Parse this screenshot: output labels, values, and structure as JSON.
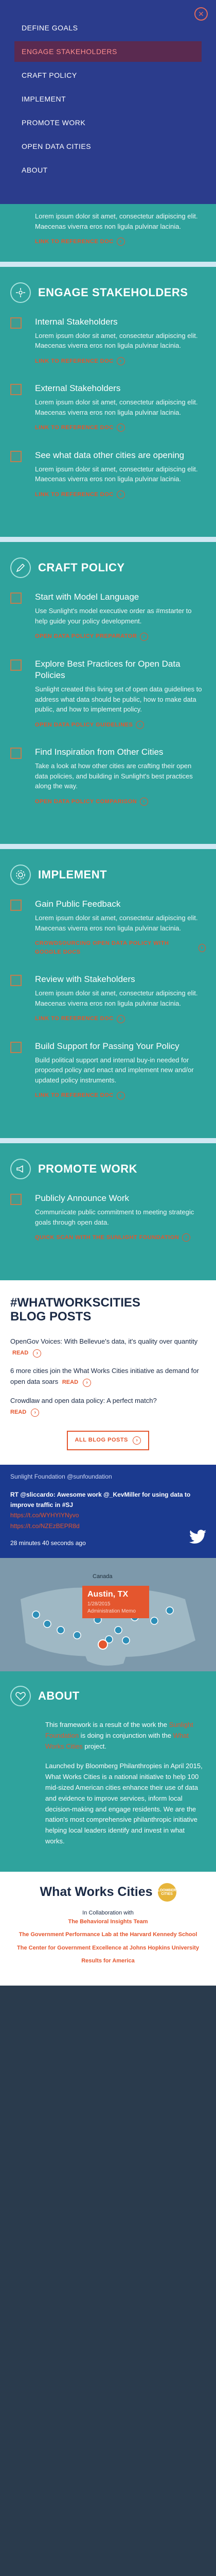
{
  "nav": {
    "close_icon": "close-icon",
    "items": [
      {
        "label": "DEFINE GOALS"
      },
      {
        "label": "ENGAGE STAKEHOLDERS"
      },
      {
        "label": "CRAFT POLICY"
      },
      {
        "label": "IMPLEMENT"
      },
      {
        "label": "PROMOTE WORK"
      },
      {
        "label": "OPEN DATA CITIES"
      },
      {
        "label": "ABOUT"
      }
    ]
  },
  "top_fragment": {
    "text": "Lorem ipsum dolor sit amet, consectetur adipiscing elit. Maecenas viverra eros non ligula pulvinar lacinia.",
    "link": "LINK TO REFERENCE DOC"
  },
  "engage": {
    "title": "ENGAGE STAKEHOLDERS",
    "items": [
      {
        "title": "Internal Stakeholders",
        "text": "Lorem ipsum dolor sit amet, consectetur adipiscing elit. Maecenas viverra eros non ligula pulvinar lacinia.",
        "link": "LINK TO REFERENCE DOC"
      },
      {
        "title": "External Stakeholders",
        "text": "Lorem ipsum dolor sit amet, consectetur adipiscing elit. Maecenas viverra eros non ligula pulvinar lacinia.",
        "link": "LINK TO REFERENCE DOC"
      },
      {
        "title": "See what data other cities are opening",
        "text": "Lorem ipsum dolor sit amet, consectetur adipiscing elit. Maecenas viverra eros non ligula pulvinar lacinia.",
        "link": "LINK TO REFERENCE DOC"
      }
    ]
  },
  "craft": {
    "title": "CRAFT POLICY",
    "items": [
      {
        "title": "Start with Model Language",
        "text": "Use Sunlight's model executive order as #mstarter to help guide your policy development.",
        "link": "OPEN DATA POLICY PREPARATOR"
      },
      {
        "title": "Explore Best Practices for Open Data Policies",
        "text": "Sunlight created this living set of open data guidelines to address what data should be public, how to make data public, and how to implement policy.",
        "link": "OPEN DATA POLICY GUIDELINES"
      },
      {
        "title": "Find Inspiration from Other Cities",
        "text": "Take a look at how other cities are crafting their open data policies, and building in Sunlight's best practices along the way.",
        "link": "OPEN DATA POLICY COMPARISON"
      }
    ]
  },
  "implement": {
    "title": "IMPLEMENT",
    "items": [
      {
        "title": "Gain Public Feedback",
        "text": "Lorem ipsum dolor sit amet, consectetur adipiscing elit. Maecenas viverra eros non ligula pulvinar lacinia.",
        "link": "CROWDSOURCING OPEN DATA POLICY WITH GOOGLE DOCS"
      },
      {
        "title": "Review with Stakeholders",
        "text": "Lorem ipsum dolor sit amet, consectetur adipiscing elit. Maecenas viverra eros non ligula pulvinar lacinia.",
        "link": "LINK TO REFERENCE DOC"
      },
      {
        "title": "Build Support for Passing Your Policy",
        "text": "Build political support and internal buy-in needed for proposed policy and enact and implement new and/or updated policy instruments.",
        "link": "LINK TO REFERENCE DOC"
      }
    ]
  },
  "promote": {
    "title": "PROMOTE WORK",
    "items": [
      {
        "title": "Publicly Announce Work",
        "text": "Communicate public commitment to meeting strategic goals through open data.",
        "link": "QUICK SCAN WITH THE SUNLIGHT FOUNDATION"
      }
    ]
  },
  "blog": {
    "title_line1": "#WHATWORKSCITIES",
    "title_line2": "BLOG POSTS",
    "posts": [
      {
        "text": "OpenGov Voices: With Bellevue's data, it's quality over quantity",
        "read": "READ"
      },
      {
        "text": "6 more cities join the What Works Cities initiative as demand for open data soars",
        "read": "READ"
      },
      {
        "text": "Crowdlaw and open data policy: A perfect match?",
        "read": "READ"
      }
    ],
    "button": "ALL BLOG POSTS"
  },
  "tweet": {
    "header": "Sunlight Foundation @sunfoundation",
    "text": "RT @sliccardo: Awesome work @_KevMiller for using data to improve traffic in #SJ",
    "url1": "https://t.co/WYHYIYNyvo",
    "url2": "https://t.co/NZEzBEPR8d",
    "time": "28 minutes 40 seconds ago",
    "bird_icon": "twitter-bird-icon"
  },
  "map": {
    "country": "Canada",
    "popup_city": "Austin, TX",
    "popup_date": "1/28/2015",
    "popup_sub": "Administration Memo"
  },
  "about": {
    "title": "ABOUT",
    "p1_pre": "This framework is a result of the work the ",
    "p1_hl": "Sunlight Foundation",
    "p1_post": " is doing in conjunction with the ",
    "p1_hl2": "What Works Cities",
    "p1_end": " project.",
    "p2": "Launched by Bloomberg Philanthropies in April 2015, What Works Cities is a national initiative to help 100 mid-sized American cities enhance their use of data and evidence to improve services, inform local decision-making and engage residents. We are the nation's most comprehensive philanthropic initiative helping local leaders identify and invest in what works."
  },
  "footer": {
    "logo": "What Works Cities",
    "badge": "BLOOMBERG CITIES",
    "intro": "In Collaboration with",
    "partners": [
      "The Behavioral Insights Team",
      "The Government Performance Lab at the Harvard Kennedy School",
      "The Center for Government Excellence at Johns Hopkins University",
      "Results for America"
    ]
  },
  "colors": {
    "nav_bg": "#2b3c8c",
    "teal": "#2fa39d",
    "accent": "#e4562e",
    "dark_navy": "#1b2a45",
    "tweet_bg": "#1b3a8f"
  }
}
